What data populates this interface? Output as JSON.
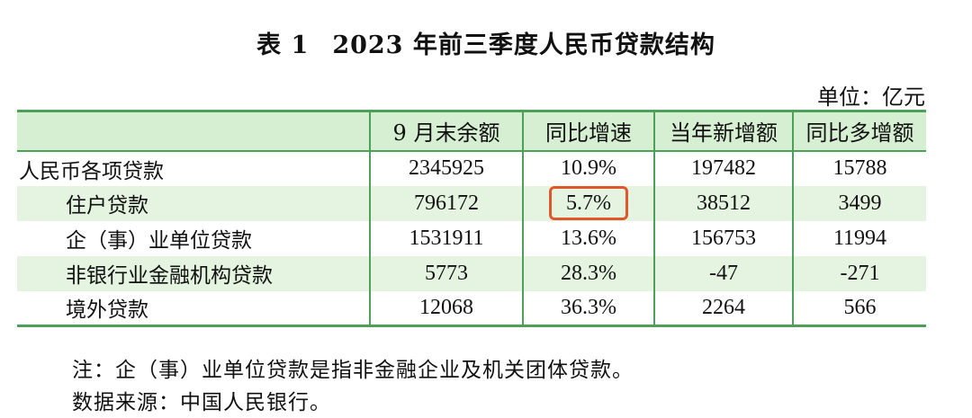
{
  "title": {
    "label": "表 1",
    "text": "2023 年前三季度人民币贷款结构"
  },
  "unit": "单位：亿元",
  "table": {
    "headers": [
      "",
      "9 月末余额",
      "同比增速",
      "当年新增额",
      "同比多增额"
    ],
    "rows": [
      {
        "label": "人民币各项贷款",
        "balance": "2345925",
        "growth": "10.9%",
        "new": "197482",
        "extra": "15788"
      },
      {
        "label": "住户贷款",
        "balance": "796172",
        "growth": "5.7%",
        "new": "38512",
        "extra": "3499"
      },
      {
        "label": "企（事）业单位贷款",
        "balance": "1531911",
        "growth": "13.6%",
        "new": "156753",
        "extra": "11994"
      },
      {
        "label": "非银行业金融机构贷款",
        "balance": "5773",
        "growth": "28.3%",
        "new": "-47",
        "extra": "-271"
      },
      {
        "label": "境外贷款",
        "balance": "12068",
        "growth": "36.3%",
        "new": "2264",
        "extra": "566"
      }
    ],
    "highlight_color": "#e0582a"
  },
  "notes": [
    "注：企（事）业单位贷款是指非金融企业及机关团体贷款。",
    "数据来源：中国人民银行。"
  ],
  "colors": {
    "rule": "#4e9f58",
    "header_fill": "#d6efd2",
    "row_fill": "#e4f4e0"
  }
}
